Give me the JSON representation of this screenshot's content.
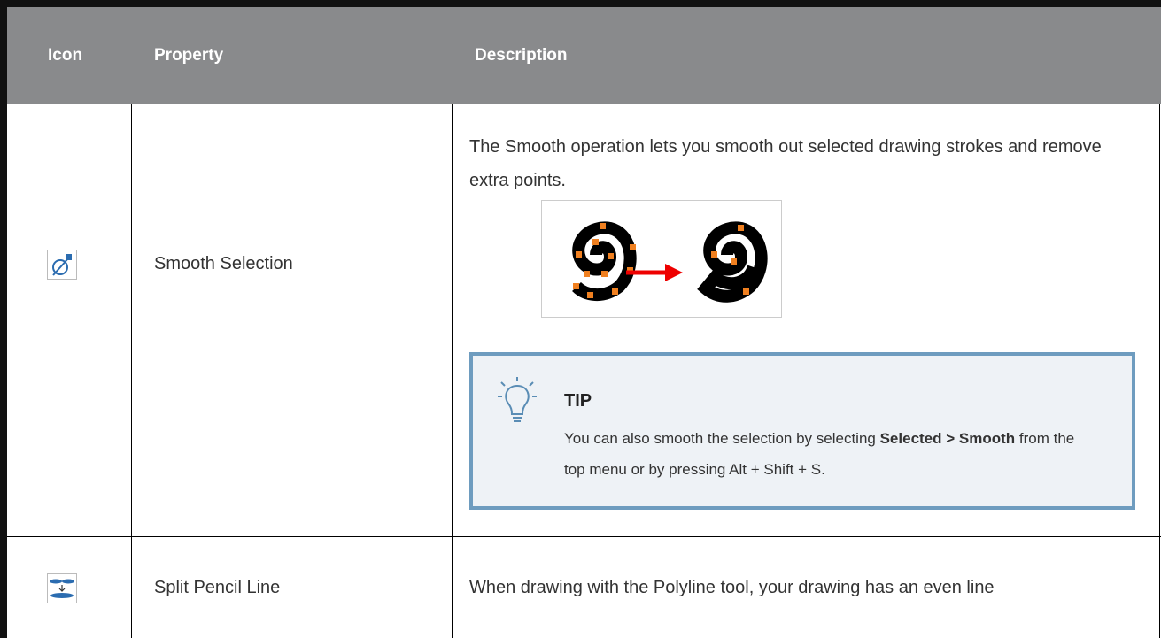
{
  "table": {
    "columns": [
      "Icon",
      "Property",
      "Description"
    ],
    "rows": [
      {
        "property": "Smooth Selection",
        "description": "The Smooth operation lets you smooth out selected drawing strokes and remove extra points.",
        "tip": {
          "label": "TIP",
          "text": [
            "You can also smooth the selection by selecting ",
            "Selected > Smooth",
            " from the top menu or by pressing Alt + Shift + S."
          ]
        }
      },
      {
        "property": "Split Pencil Line",
        "description": "When drawing with the Polyline tool, your drawing has an even line"
      }
    ]
  }
}
